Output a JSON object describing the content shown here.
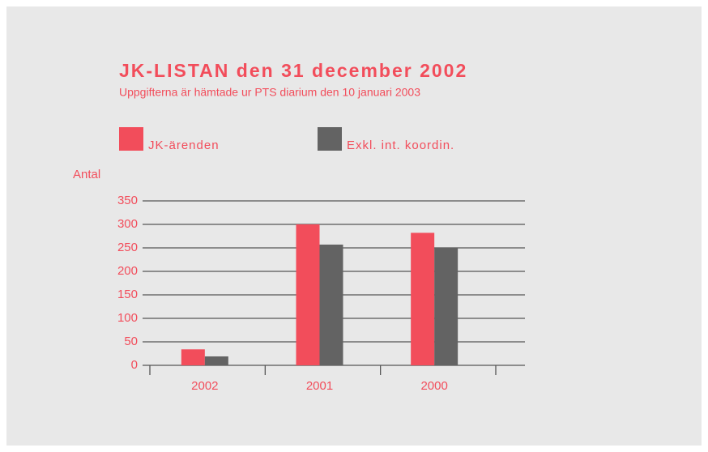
{
  "chart_data": {
    "type": "bar",
    "title": "JK-LISTAN den 31 december 2002",
    "subtitle": "Uppgifterna är hämtade ur PTS diarium den 10 januari 2003",
    "ylabel": "Antal",
    "categories": [
      "2002",
      "2001",
      "2000"
    ],
    "series": [
      {
        "name": "JK-ärenden",
        "color": "#f24d5b",
        "values": [
          34,
          300,
          282
        ]
      },
      {
        "name": "Exkl. int. koordin.",
        "color": "#636363",
        "values": [
          19,
          257,
          251
        ]
      }
    ],
    "ylim": [
      0,
      350
    ],
    "yticks": [
      0,
      50,
      100,
      150,
      200,
      250,
      300,
      350
    ],
    "grid": true
  }
}
